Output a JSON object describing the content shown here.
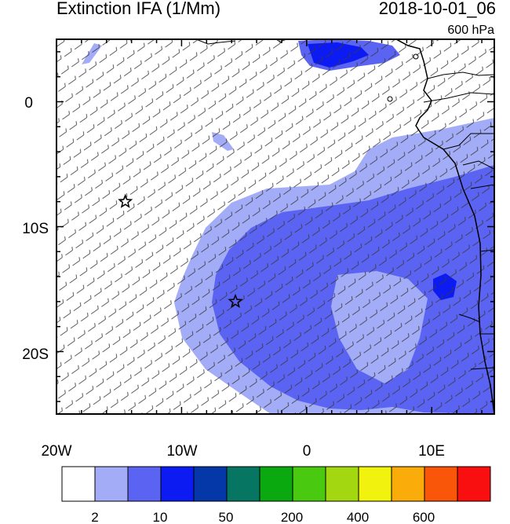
{
  "header": {
    "title": "Extinction IFA (1/Mm)",
    "datetime": "2018-10-01_06",
    "level": "600 hPa"
  },
  "axes": {
    "x_ticks": [
      "20W",
      "10W",
      "0",
      "10E"
    ],
    "y_ticks": [
      "0",
      "10S",
      "20S"
    ]
  },
  "colorbar": {
    "colors": [
      "#ffffff",
      "#a3acf6",
      "#5a63f2",
      "#0b1bf2",
      "#0437a8",
      "#067562",
      "#09a90f",
      "#49c90f",
      "#a3d70f",
      "#f2f20f",
      "#f9ac0a",
      "#f9560a",
      "#f90f0f"
    ],
    "labels": [
      "2",
      "10",
      "50",
      "200",
      "400",
      "600"
    ]
  },
  "markers": [
    {
      "name": "star-marker-1",
      "lon": -14.5,
      "lat": -8.0
    },
    {
      "name": "star-marker-2",
      "lon": -5.7,
      "lat": -16.0
    }
  ]
}
